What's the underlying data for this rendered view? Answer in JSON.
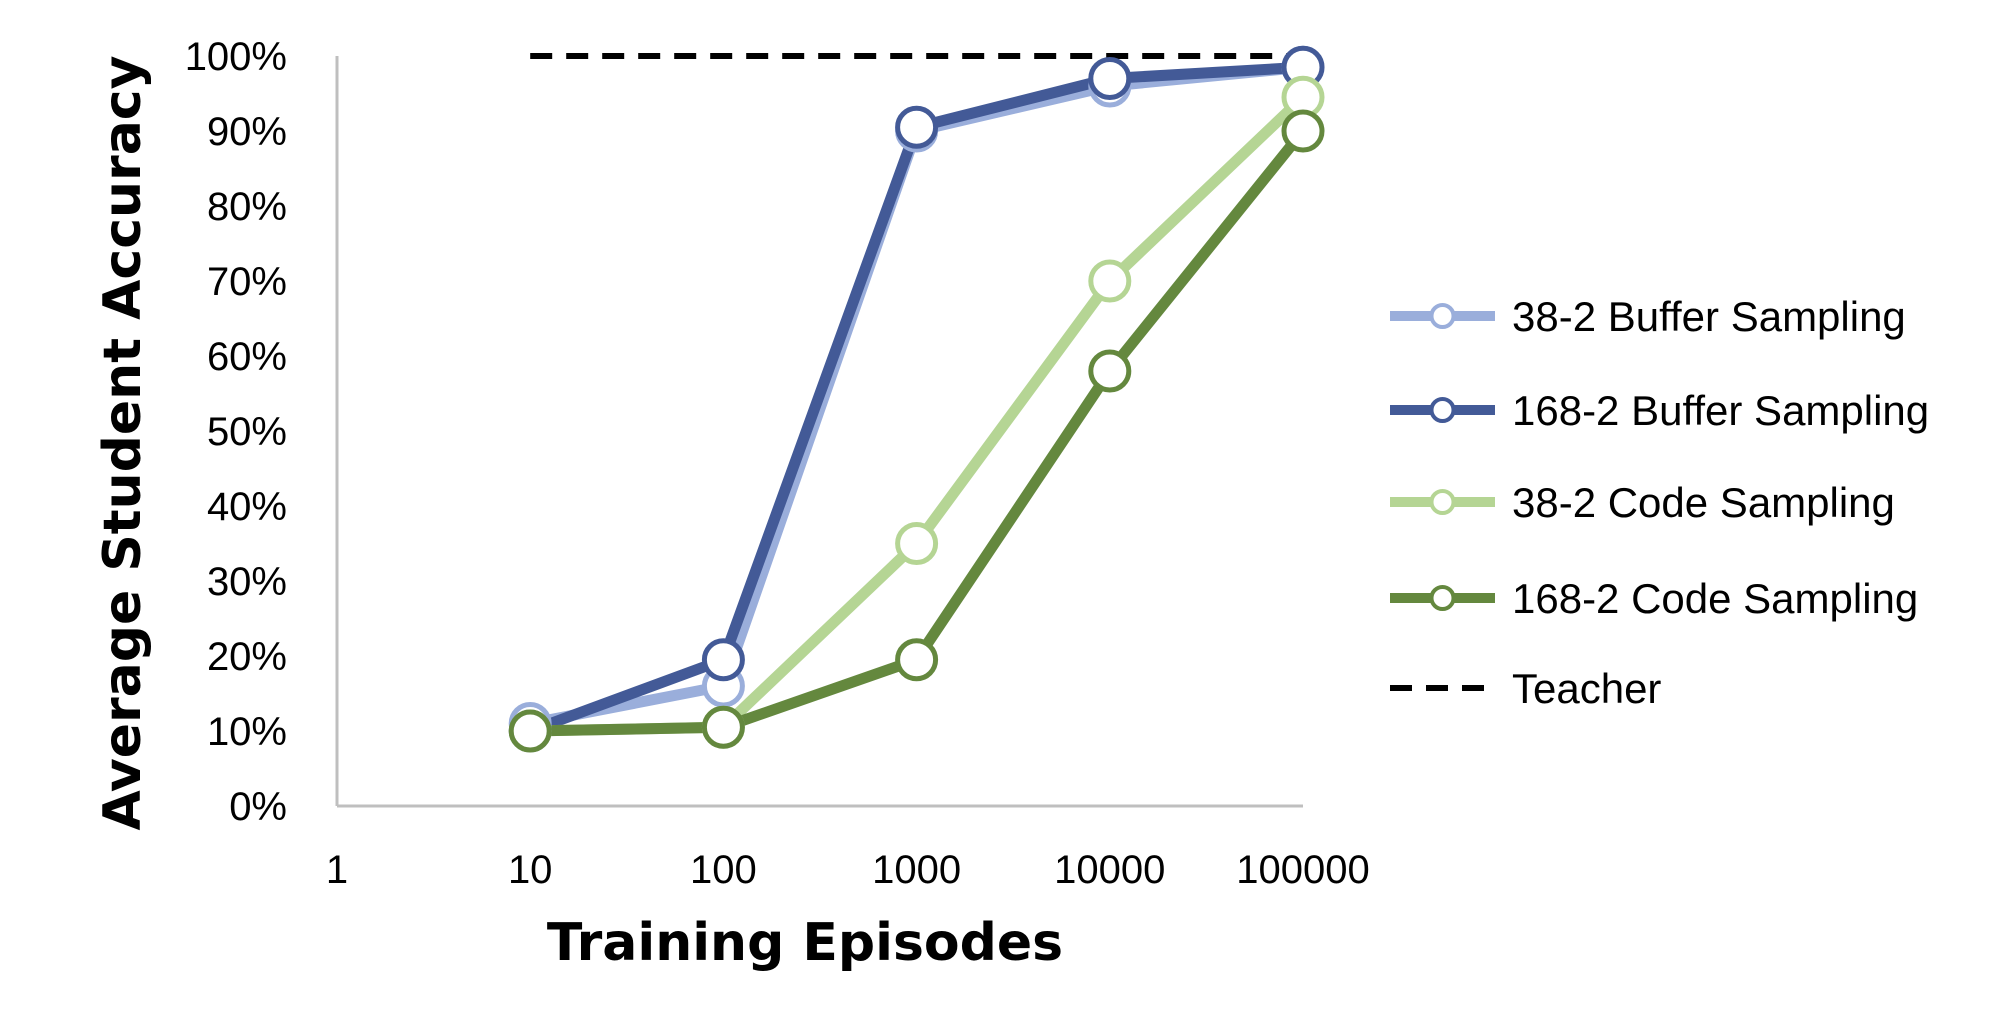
{
  "chart_data": {
    "type": "line",
    "title": "",
    "xlabel": "Training Episodes",
    "ylabel": "Average Student Accuracy",
    "x_scale": "log",
    "xlim": [
      1,
      100000
    ],
    "ylim": [
      0,
      1
    ],
    "x_ticks": [
      "1",
      "10",
      "100",
      "1000",
      "10000",
      "100000"
    ],
    "y_ticks": [
      "0%",
      "10%",
      "20%",
      "30%",
      "40%",
      "50%",
      "60%",
      "70%",
      "80%",
      "90%",
      "100%"
    ],
    "grid": false,
    "legend_position": "right",
    "x": [
      10,
      100,
      1000,
      10000,
      100000
    ],
    "series": [
      {
        "name": "38-2 Buffer Sampling",
        "color": "#9AAEDB",
        "values": [
          0.11,
          0.16,
          0.9,
          0.96,
          0.985
        ]
      },
      {
        "name": "168-2 Buffer Sampling",
        "color": "#435A97",
        "values": [
          0.1,
          0.195,
          0.905,
          0.97,
          0.985
        ]
      },
      {
        "name": "38-2 Code Sampling",
        "color": "#B5D594",
        "values": [
          0.1,
          0.105,
          0.35,
          0.7,
          0.945
        ]
      },
      {
        "name": "168-2 Code Sampling",
        "color": "#64883E",
        "values": [
          0.1,
          0.105,
          0.195,
          0.58,
          0.9
        ]
      }
    ],
    "reference_lines": [
      {
        "name": "Teacher",
        "color": "#000000",
        "style": "dashed",
        "value": 1.0,
        "x_range": [
          10,
          100000
        ]
      }
    ]
  }
}
